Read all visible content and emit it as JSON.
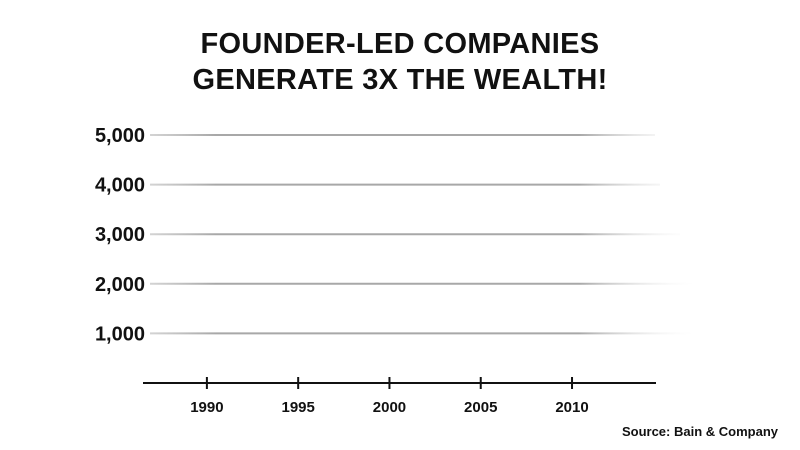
{
  "chart_data": {
    "type": "line",
    "title": "FOUNDER-LED COMPANIES GENERATE 3X THE WEALTH!",
    "title_lines": [
      "FOUNDER-LED COMPANIES",
      "GENERATE 3X THE WEALTH!"
    ],
    "xlabel": "",
    "ylabel": "",
    "x_ticks": [
      1990,
      1995,
      2000,
      2005,
      2010
    ],
    "x_tick_labels": [
      "1990",
      "1995",
      "2000",
      "2005",
      "2010"
    ],
    "y_ticks": [
      1000,
      2000,
      3000,
      4000,
      5000
    ],
    "y_tick_labels": [
      "1,000",
      "2,000",
      "3,000",
      "4,000",
      "5,000"
    ],
    "xlim": [
      1986.5,
      2014.6
    ],
    "ylim": [
      0,
      5000
    ],
    "grid": true,
    "series": [],
    "colors": {
      "text": "#111111",
      "axis": "#111111",
      "grid": "#b0b0b0"
    }
  },
  "source": "Source: Bain & Company"
}
